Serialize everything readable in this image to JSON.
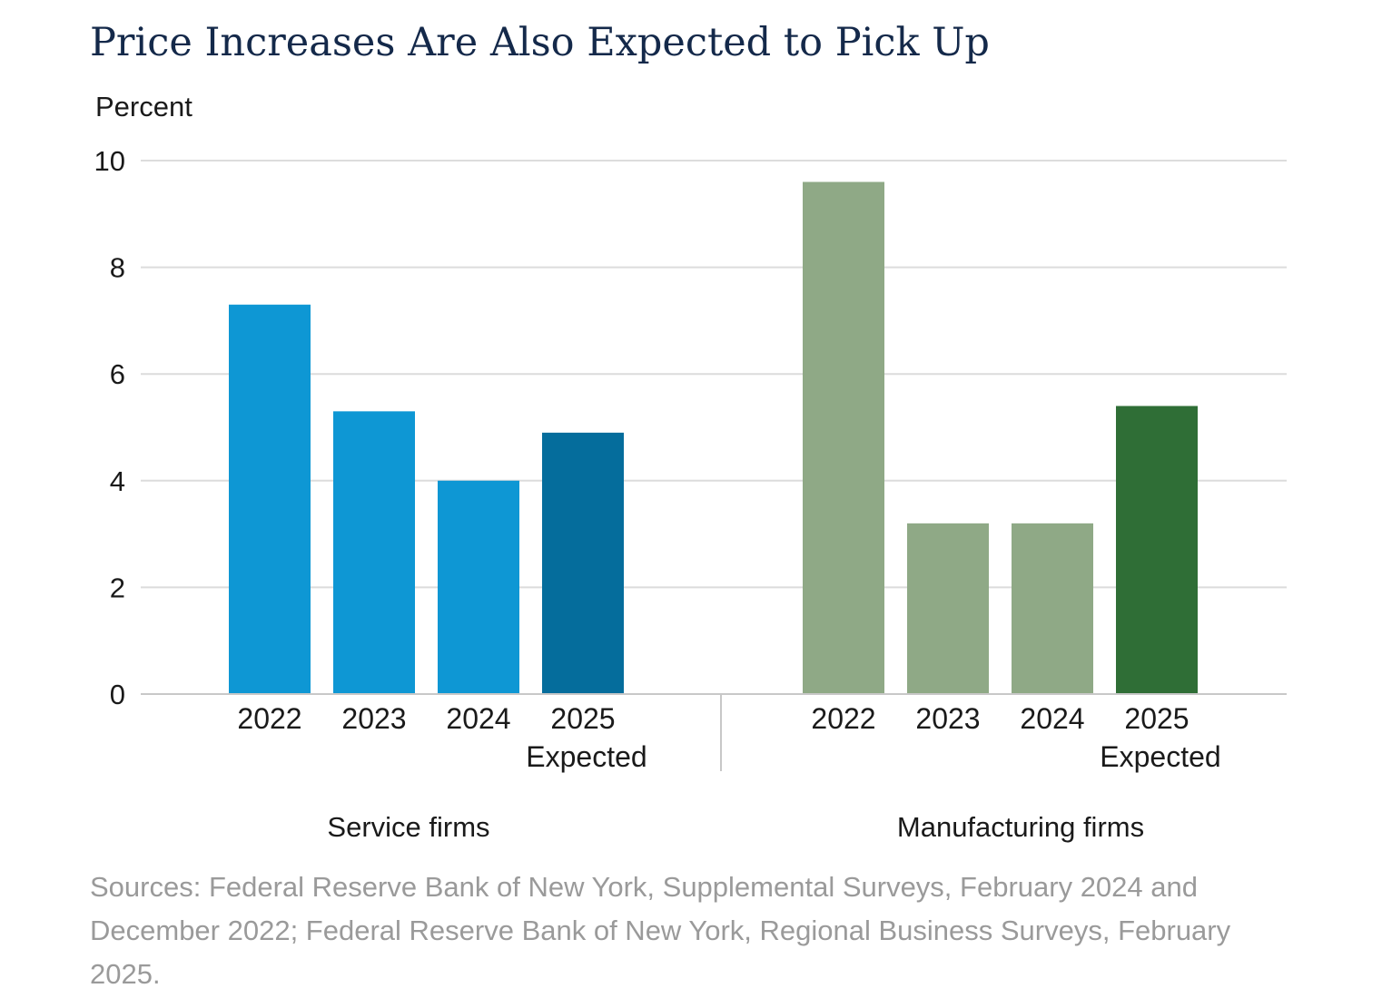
{
  "title": "Price Increases Are Also Expected to Pick Up",
  "source_note": "Sources: Federal Reserve Bank of New York, Supplemental Surveys, February 2024 and December 2022; Federal Reserve Bank of New York, Regional Business Surveys, February 2025.",
  "chart_data": {
    "type": "bar",
    "ylabel": "Percent",
    "ylim": [
      0,
      10
    ],
    "yticks": [
      "0",
      "2",
      "4",
      "6",
      "8",
      "10"
    ],
    "grid": true,
    "groups": [
      {
        "name": "Service firms",
        "categories": [
          {
            "year": "2022",
            "sub": ""
          },
          {
            "year": "2023",
            "sub": ""
          },
          {
            "year": "2024",
            "sub": ""
          },
          {
            "year": "2025",
            "sub": "Expected"
          }
        ],
        "values": [
          7.3,
          5.3,
          4.0,
          4.9
        ],
        "colors": [
          "#0e97d4",
          "#0e97d4",
          "#0e97d4",
          "#056d9c"
        ]
      },
      {
        "name": "Manufacturing firms",
        "categories": [
          {
            "year": "2022",
            "sub": ""
          },
          {
            "year": "2023",
            "sub": ""
          },
          {
            "year": "2024",
            "sub": ""
          },
          {
            "year": "2025",
            "sub": "Expected"
          }
        ],
        "values": [
          9.6,
          3.2,
          3.2,
          5.4
        ],
        "colors": [
          "#8fa986",
          "#8fa986",
          "#8fa986",
          "#2f6e36"
        ]
      }
    ]
  }
}
